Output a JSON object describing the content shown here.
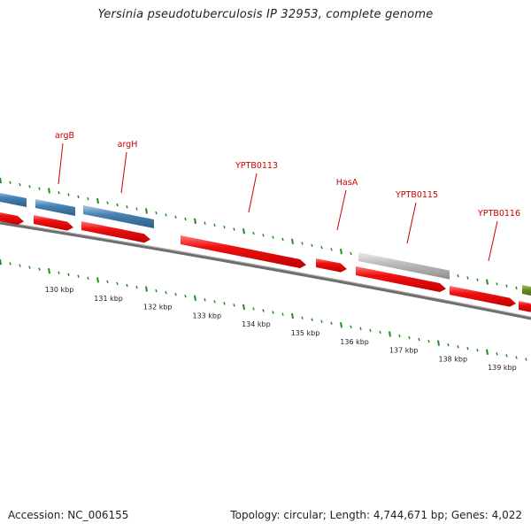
{
  "title": "Yersinia pseudotuberculosis IP 32953, complete genome",
  "footer": {
    "accession": "Accession: NC_006155",
    "topology": "Topology: circular; Length: 4,744,671 bp; Genes: 4,022"
  },
  "colors": {
    "cds": "#ee1111",
    "cds_top": "#ff6a6a",
    "gene_blue": "#4682b4",
    "gene_blue_top": "#9cc0e0",
    "gene_gray": "#b8b8b8",
    "gene_gray_top": "#e8e8e8",
    "gene_olive": "#6b8e23",
    "backbone": "#707070",
    "tick_green": "#228b22",
    "label_red": "#cc0000"
  },
  "scale": {
    "unit": "kbp",
    "labels": [
      "130 kbp",
      "131 kbp",
      "132 kbp",
      "133 kbp",
      "134 kbp",
      "135 kbp",
      "136 kbp",
      "137 kbp",
      "138 kbp",
      "139 kbp"
    ]
  },
  "gene_labels": [
    "argB",
    "argH",
    "YPTB0113",
    "HasA",
    "YPTB0115",
    "YPTB0116"
  ]
}
